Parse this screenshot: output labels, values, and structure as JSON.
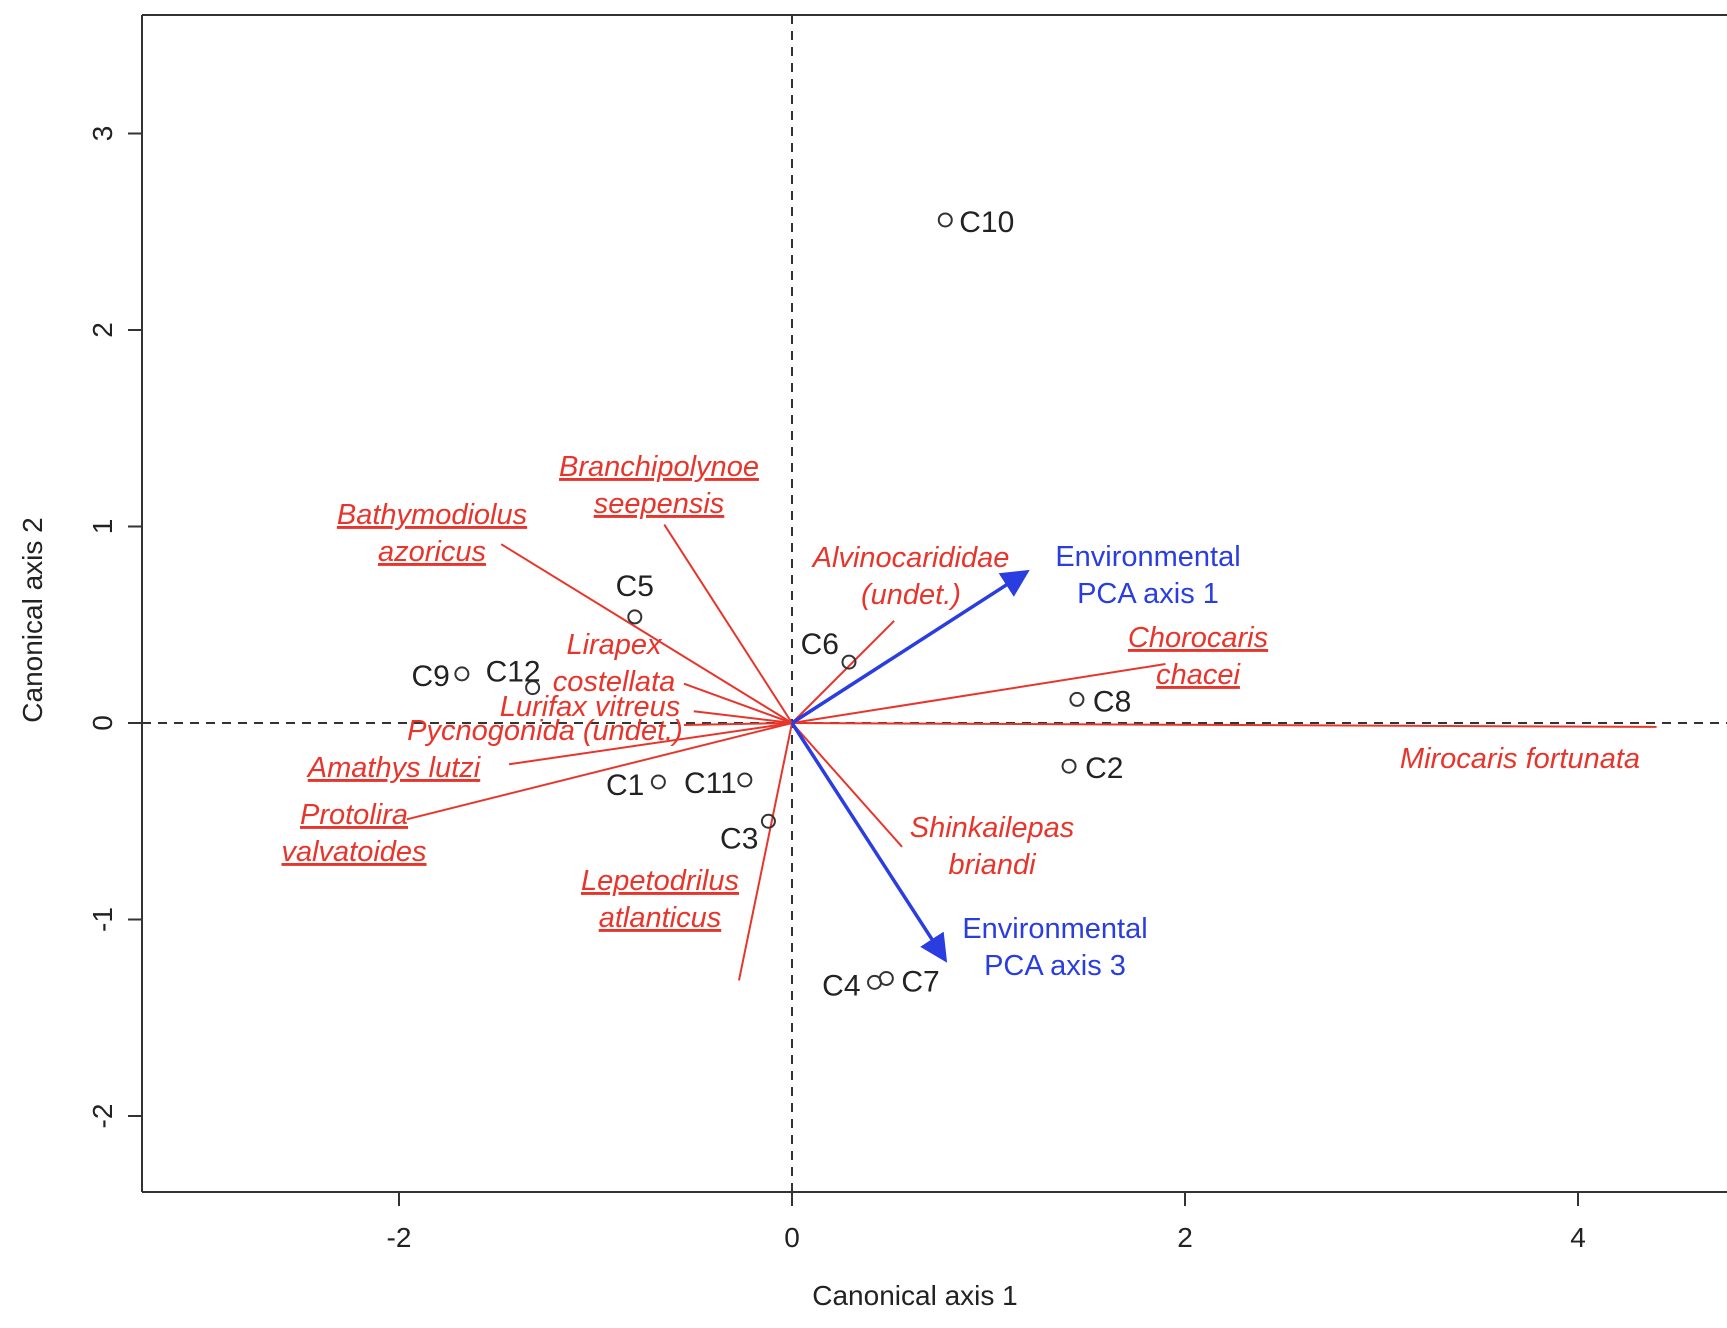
{
  "chart_data": {
    "type": "scatter",
    "title": "",
    "xlabel": "Canonical axis 1",
    "ylabel": "Canonical axis 2",
    "xlim": [
      -3.3,
      4.7
    ],
    "ylim": [
      -2.4,
      3.6
    ],
    "xticks": [
      -2,
      0,
      2,
      4
    ],
    "yticks": [
      -2,
      -1,
      0,
      1,
      2,
      3
    ],
    "reference_lines": {
      "x": 0,
      "y": 0,
      "style": "dashed"
    },
    "colors": {
      "sites": "#333333",
      "species": "#e8352b",
      "environment": "#2a3de0",
      "reference": "#333333"
    },
    "sites": [
      {
        "name": "C1",
        "x": -0.68,
        "y": -0.3
      },
      {
        "name": "C2",
        "x": 1.41,
        "y": -0.22
      },
      {
        "name": "C3",
        "x": -0.12,
        "y": -0.5
      },
      {
        "name": "C4",
        "x": 0.42,
        "y": -1.32
      },
      {
        "name": "C5",
        "x": -0.8,
        "y": 0.54
      },
      {
        "name": "C6",
        "x": 0.29,
        "y": 0.31
      },
      {
        "name": "C7",
        "x": 0.48,
        "y": -1.3
      },
      {
        "name": "C8",
        "x": 1.45,
        "y": 0.12
      },
      {
        "name": "C9",
        "x": -1.68,
        "y": 0.25
      },
      {
        "name": "C10",
        "x": 0.78,
        "y": 2.56
      },
      {
        "name": "C11",
        "x": -0.24,
        "y": -0.29
      },
      {
        "name": "C12",
        "x": -1.32,
        "y": 0.18
      }
    ],
    "species": [
      {
        "lines": [
          "Bathymodiolus",
          "azoricus"
        ],
        "underline": true,
        "x": -1.48,
        "y": 0.91
      },
      {
        "lines": [
          "Branchipolynoe",
          "seepensis"
        ],
        "underline": true,
        "x": -0.65,
        "y": 1.01
      },
      {
        "lines": [
          "Alvinocarididae",
          "(undet.)"
        ],
        "underline": false,
        "x": 0.52,
        "y": 0.52
      },
      {
        "lines": [
          "Chorocaris",
          "chacei"
        ],
        "underline": true,
        "x": 1.9,
        "y": 0.3
      },
      {
        "lines": [
          "Mirocaris fortunata"
        ],
        "underline": false,
        "x": 4.4,
        "y": -0.02
      },
      {
        "lines": [
          "Shinkailepas",
          "briandi"
        ],
        "underline": false,
        "x": 0.56,
        "y": -0.63
      },
      {
        "lines": [
          "Lepetodrilus",
          "atlanticus"
        ],
        "underline": true,
        "x": -0.27,
        "y": -1.31
      },
      {
        "lines": [
          "Protolira",
          "valvatoides"
        ],
        "underline": true,
        "x": -1.96,
        "y": -0.49
      },
      {
        "lines": [
          "Amathys lutzi"
        ],
        "underline": true,
        "x": -1.44,
        "y": -0.21
      },
      {
        "lines": [
          "Pycnogonida (undet.)"
        ],
        "underline": false,
        "x": -0.55,
        "y": -0.01
      },
      {
        "lines": [
          "Lurifax vitreus"
        ],
        "underline": false,
        "x": -0.5,
        "y": 0.06
      },
      {
        "lines": [
          "Lirapex",
          "costellata"
        ],
        "underline": false,
        "x": -0.55,
        "y": 0.2
      }
    ],
    "environment": [
      {
        "lines": [
          "Environmental",
          "PCA axis 1"
        ],
        "x": 1.18,
        "y": 0.76
      },
      {
        "lines": [
          "Environmental",
          "PCA axis 3"
        ],
        "x": 0.77,
        "y": -1.19
      }
    ]
  }
}
